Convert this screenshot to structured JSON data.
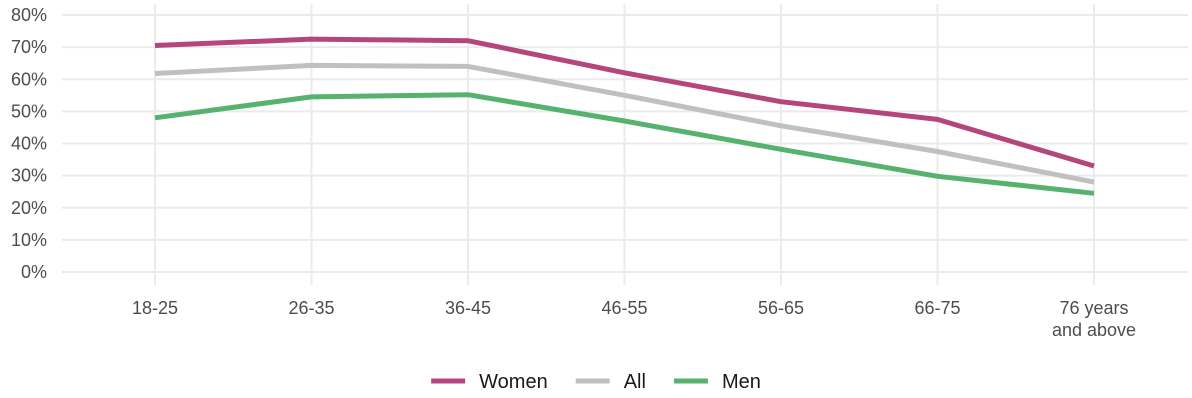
{
  "chart_data": {
    "type": "line",
    "categories": [
      "18-25",
      "26-35",
      "36-45",
      "46-55",
      "56-65",
      "66-75",
      "76 years\nand above"
    ],
    "series": [
      {
        "name": "Women",
        "color": "#b5467c",
        "values": [
          70.5,
          72.5,
          72.0,
          62.0,
          53.0,
          47.5,
          33.0
        ]
      },
      {
        "name": "All",
        "color": "#c0c0c0",
        "values": [
          61.8,
          64.3,
          64.0,
          55.0,
          45.5,
          37.5,
          28.0
        ]
      },
      {
        "name": "Men",
        "color": "#57b26f",
        "values": [
          48.0,
          54.5,
          55.2,
          47.0,
          38.2,
          29.8,
          24.5
        ]
      }
    ],
    "ylim": [
      0,
      80
    ],
    "yticks": [
      "0%",
      "10%",
      "20%",
      "30%",
      "40%",
      "50%",
      "60%",
      "70%",
      "80%"
    ],
    "xlabel": "",
    "ylabel": "",
    "grid": true,
    "legend_position": "bottom"
  }
}
